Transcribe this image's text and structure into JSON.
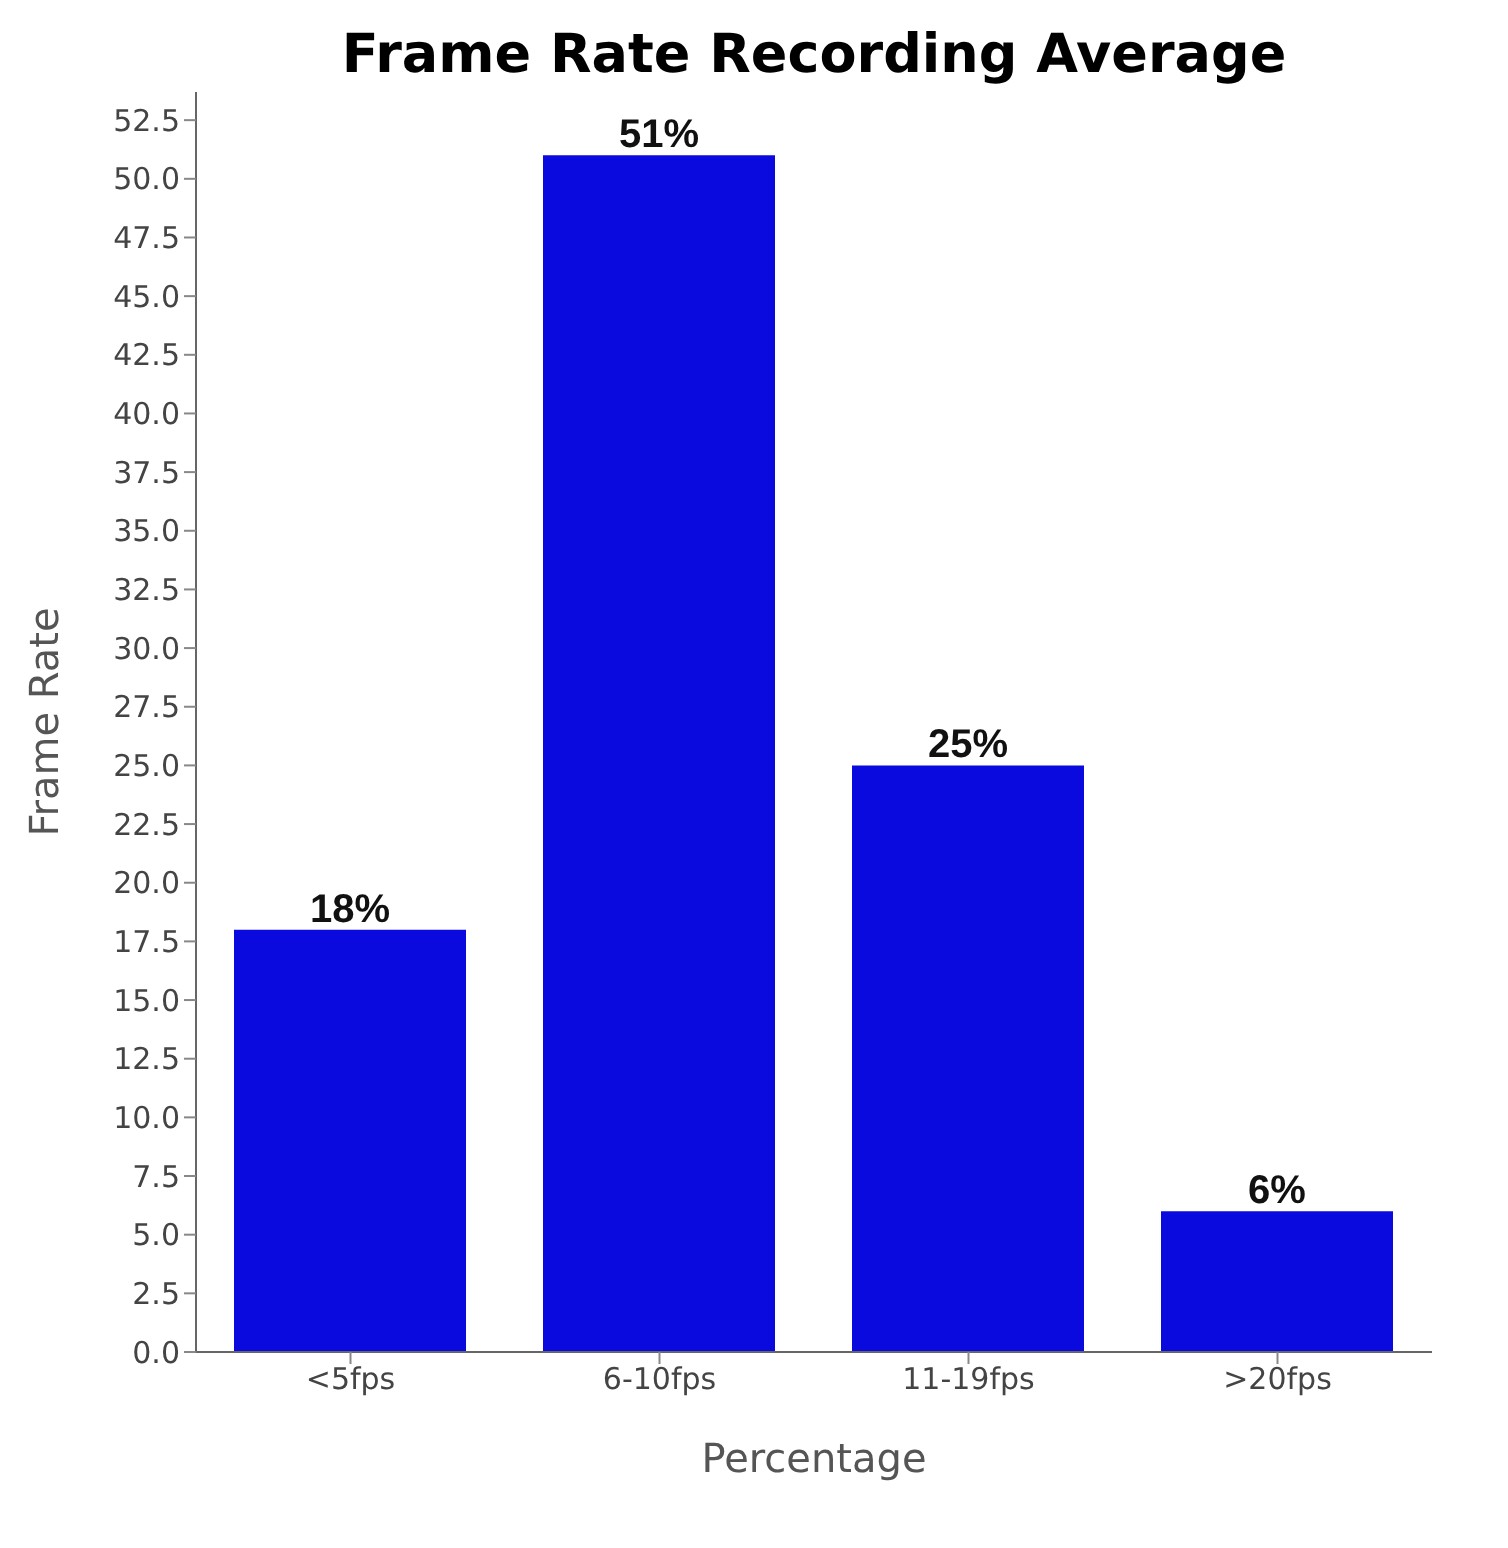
{
  "chart_data": {
    "type": "bar",
    "title": "Frame Rate Recording Average",
    "xlabel": "Percentage",
    "ylabel": "Frame Rate",
    "categories": [
      "<5fps",
      "6-10fps",
      "11-19fps",
      ">20fps"
    ],
    "values": [
      18,
      51,
      25,
      6
    ],
    "value_labels": [
      "18%",
      "51%",
      "25%",
      "6%"
    ],
    "color": "#0a0ade",
    "ylim": [
      0,
      53.7
    ],
    "yticks": [
      {
        "value": 0,
        "label": "0.0"
      },
      2.5,
      {
        "value": 5,
        "label": "5.0"
      },
      7.5,
      {
        "value": 10,
        "label": "10.0"
      },
      12.5,
      {
        "value": 15,
        "label": "15.0"
      },
      17.5,
      {
        "value": 20,
        "label": "20.0"
      },
      22.5,
      {
        "value": 25,
        "label": "25.0"
      },
      27.5,
      {
        "value": 30,
        "label": "30.0"
      },
      32.5,
      {
        "value": 35,
        "label": "35.0"
      },
      37.5,
      {
        "value": 40,
        "label": "40.0"
      },
      42.5,
      {
        "value": 45,
        "label": "45.0"
      },
      47.5,
      {
        "value": 50,
        "label": "50.0"
      },
      52.5
    ],
    "grid": false,
    "legend": false
  }
}
